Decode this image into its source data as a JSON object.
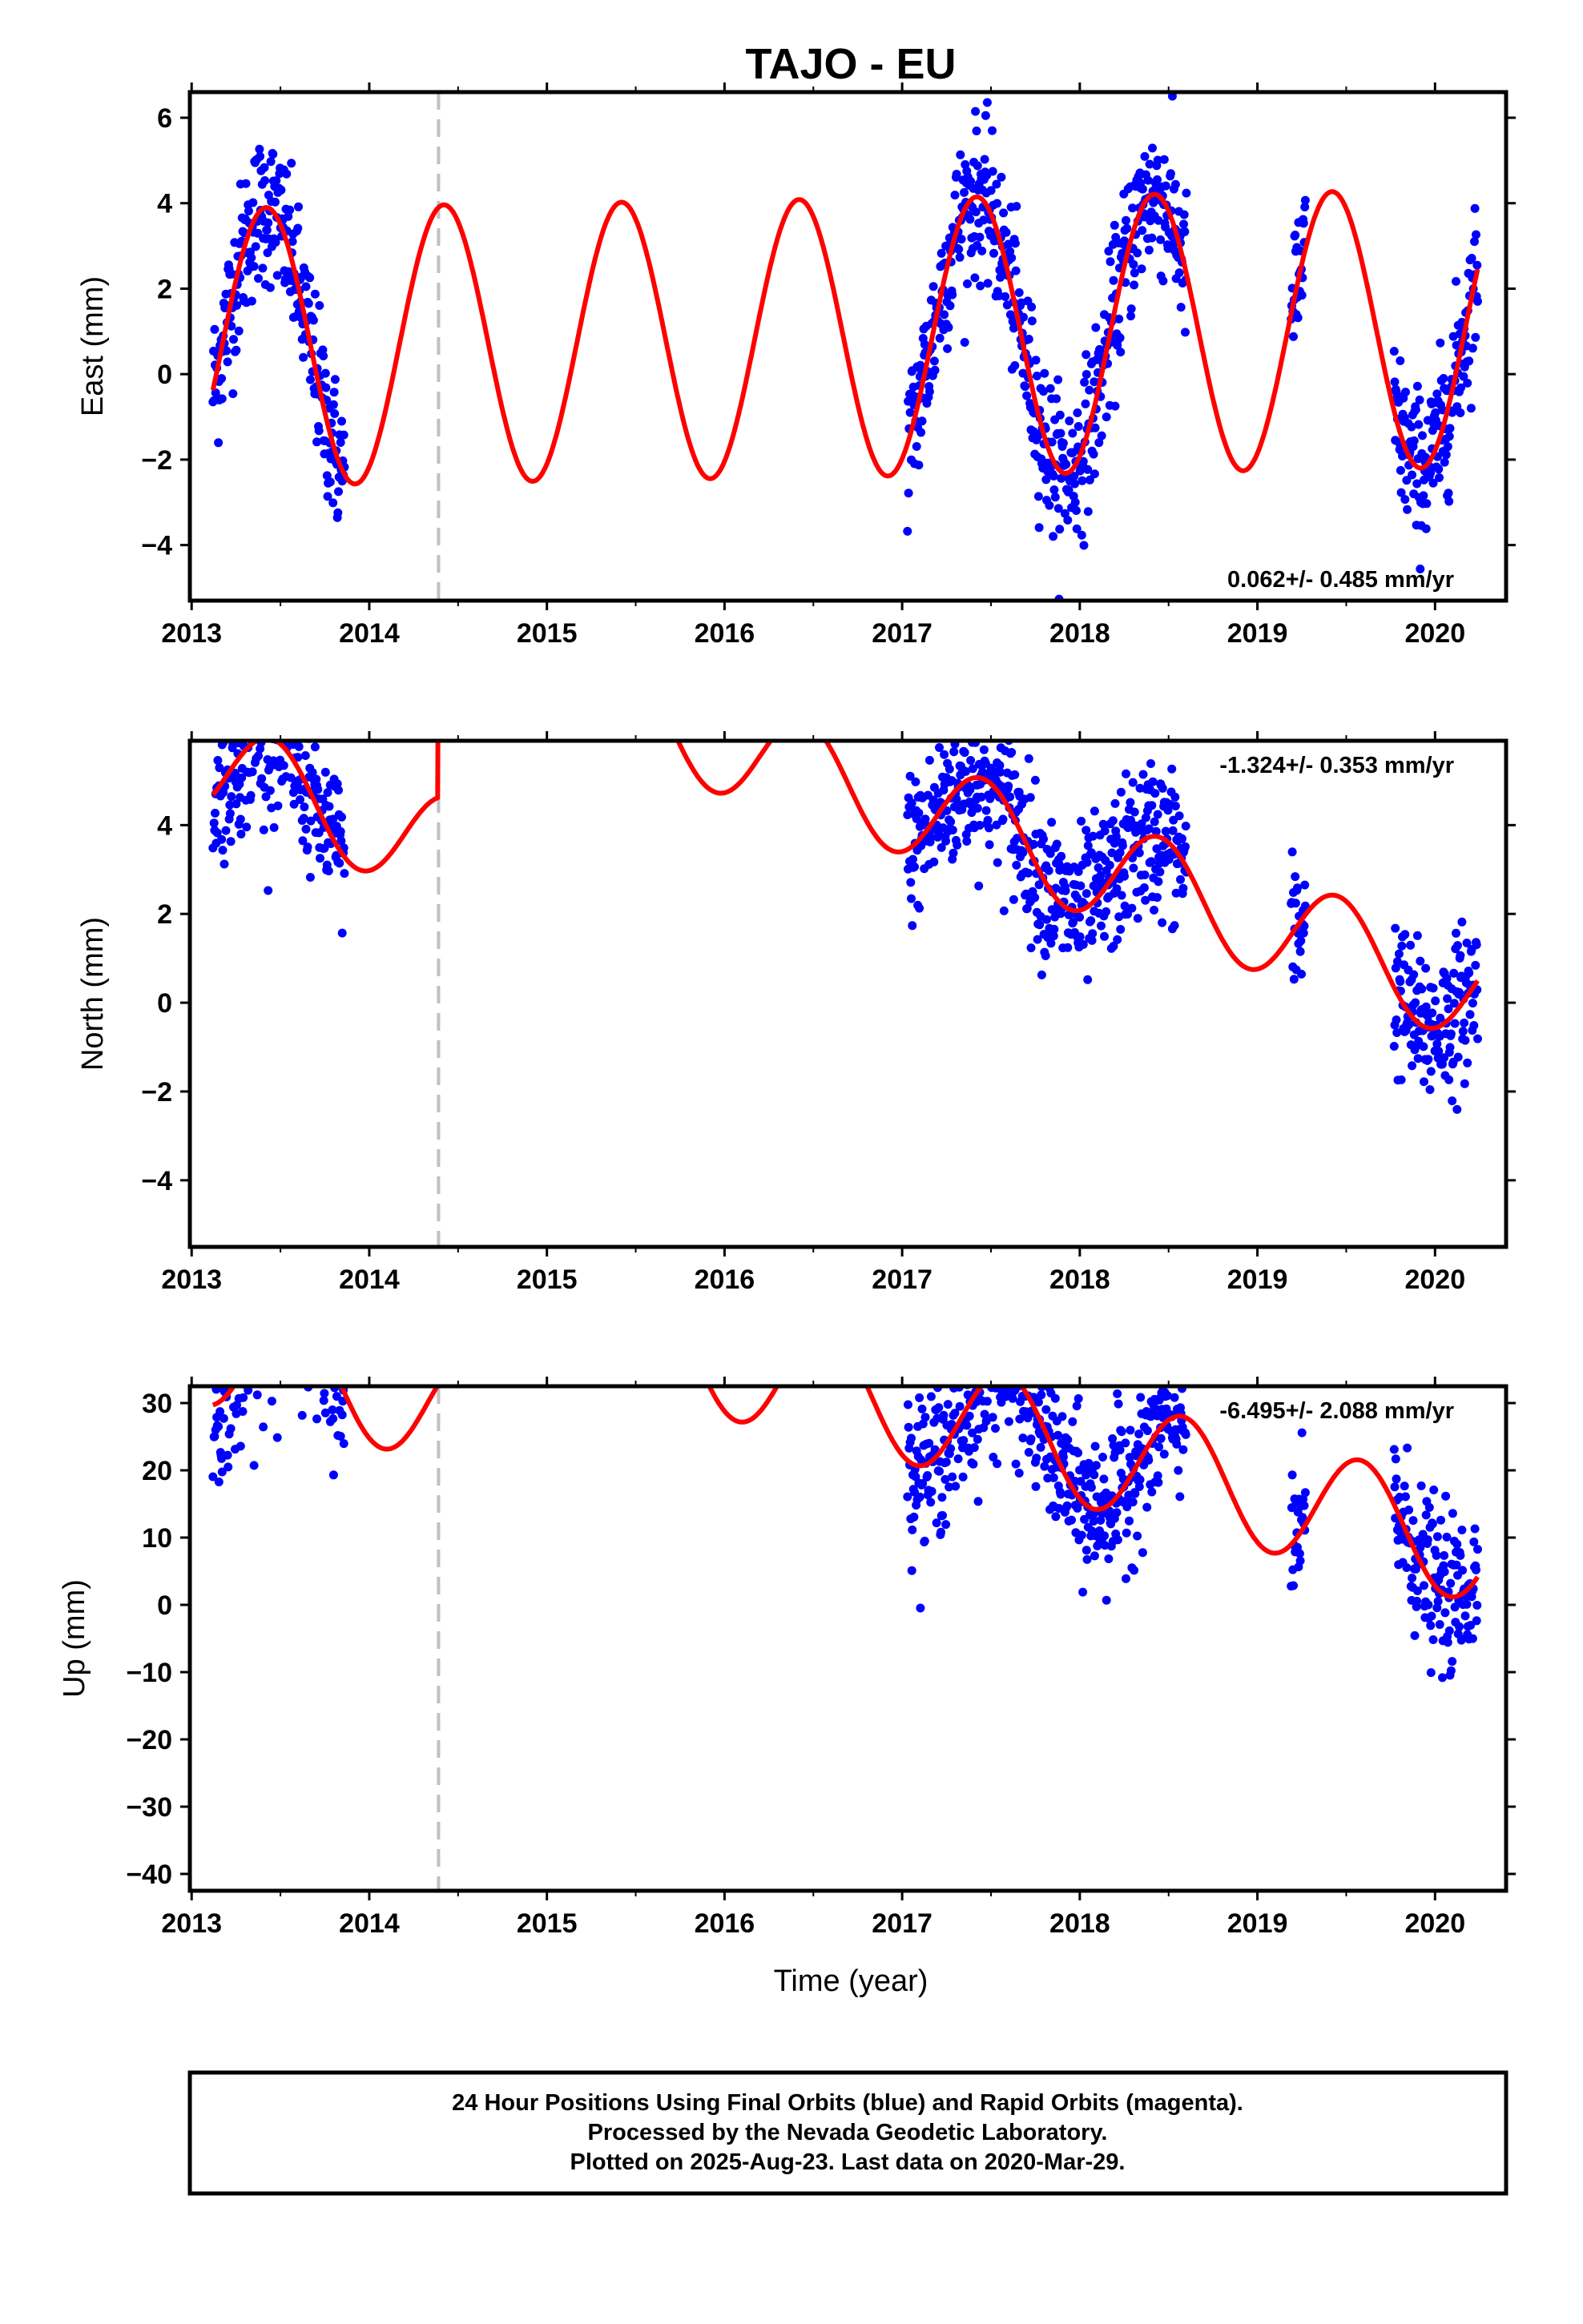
{
  "title": "TAJO - EU",
  "xlabel": "Time (year)",
  "footer": {
    "line1": "24 Hour Positions Using Final Orbits (blue) and Rapid Orbits (magenta).",
    "line2": "Processed by the Nevada Geodetic Laboratory.",
    "line3": "Plotted on 2025-Aug-23. Last data on 2020-Mar-29."
  },
  "colors": {
    "final_orbits": "#0000ff",
    "model": "#ff0000",
    "offset_marker": "#c0c0c0"
  },
  "chart_data": [
    {
      "type": "scatter",
      "name": "east",
      "ylabel": "East (mm)",
      "rate": "0.062+/- 0.485 mm/yr",
      "xlim": [
        2012.99,
        2020.4
      ],
      "ylim": [
        -5.3,
        6.6
      ],
      "xticks": [
        2013,
        2014,
        2015,
        2016,
        2017,
        2018,
        2019,
        2020
      ],
      "yticks": [
        -4,
        -2,
        0,
        2,
        4,
        6
      ],
      "offset_epoch": 2014.39,
      "segments": [
        {
          "start": 2013.12,
          "end": 2013.86
        },
        {
          "start": 2017.03,
          "end": 2018.6
        },
        {
          "start": 2019.19,
          "end": 2019.27
        },
        {
          "start": 2019.77,
          "end": 2020.24
        }
      ],
      "model": {
        "mean": 0.84,
        "trend": 0.062,
        "amplitude": 3.25,
        "peak_phase": 0.42,
        "offset": 0.0
      }
    },
    {
      "type": "scatter",
      "name": "north",
      "ylabel": "North (mm)",
      "rate": "-1.324+/- 0.353 mm/yr",
      "xlim": [
        2012.99,
        2020.4
      ],
      "ylim": [
        -5.5,
        5.9
      ],
      "xticks": [
        2013,
        2014,
        2015,
        2016,
        2017,
        2018,
        2019,
        2020
      ],
      "yticks": [
        -4,
        -2,
        0,
        2,
        4
      ],
      "offset_epoch": 2014.39,
      "segments": [
        {
          "start": 2013.12,
          "end": 2013.86
        },
        {
          "start": 2017.03,
          "end": 2018.6
        },
        {
          "start": 2019.19,
          "end": 2019.27
        },
        {
          "start": 2019.77,
          "end": 2020.24
        }
      ],
      "model": {
        "mean": 0.76,
        "trend": -1.324,
        "amplitude": 1.15,
        "peak_phase": 0.45,
        "offset": 4.4
      }
    },
    {
      "type": "scatter",
      "name": "up",
      "ylabel": "Up (mm)",
      "rate": "-6.495+/- 2.088 mm/yr",
      "xlim": [
        2012.99,
        2020.4
      ],
      "ylim": [
        -42.5,
        32.5
      ],
      "xticks": [
        2013,
        2014,
        2015,
        2016,
        2017,
        2018,
        2019,
        2020
      ],
      "yticks": [
        -40,
        -30,
        -20,
        -10,
        0,
        10,
        20,
        30
      ],
      "offset_epoch": 2014.39,
      "segments": [
        {
          "start": 2013.12,
          "end": 2013.86
        },
        {
          "start": 2017.03,
          "end": 2018.6
        },
        {
          "start": 2019.19,
          "end": 2019.27
        },
        {
          "start": 2019.77,
          "end": 2020.24
        }
      ],
      "model": {
        "mean": 16.0,
        "trend": -6.495,
        "amplitude": 8.5,
        "peak_phase": 0.58,
        "offset": 17.0
      }
    }
  ]
}
